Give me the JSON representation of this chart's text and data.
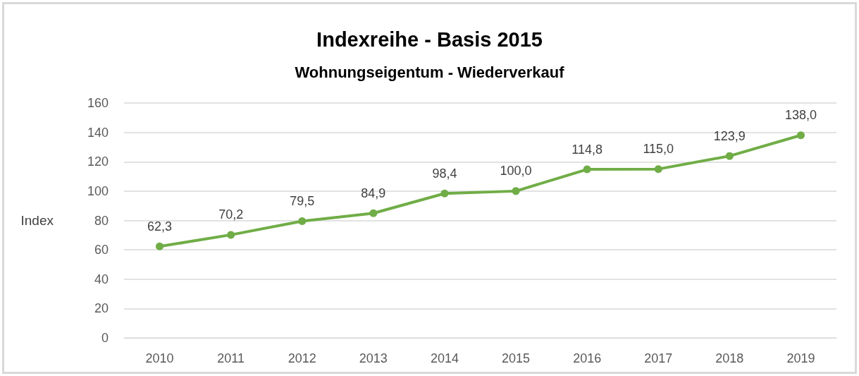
{
  "chart_data": {
    "type": "line",
    "title": "Indexreihe - Basis 2015",
    "subtitle": "Wohnungseigentum - Wiederverkauf",
    "ylabel": "Index",
    "categories": [
      "2010",
      "2011",
      "2012",
      "2013",
      "2014",
      "2015",
      "2016",
      "2017",
      "2018",
      "2019"
    ],
    "series": [
      {
        "color": "#70ad47",
        "values": [
          62.3,
          70.2,
          79.5,
          84.9,
          98.4,
          100.0,
          114.8,
          115.0,
          123.9,
          138.0
        ],
        "value_labels": [
          "62,3",
          "70,2",
          "79,5",
          "84,9",
          "98,4",
          "100,0",
          "114,8",
          "115,0",
          "123,9",
          "138,0"
        ]
      }
    ],
    "ylim": [
      0,
      160
    ],
    "yticks": [
      0,
      20,
      40,
      60,
      80,
      100,
      120,
      140,
      160
    ],
    "grid": "y",
    "marker": "circle",
    "line_style": "solid"
  }
}
